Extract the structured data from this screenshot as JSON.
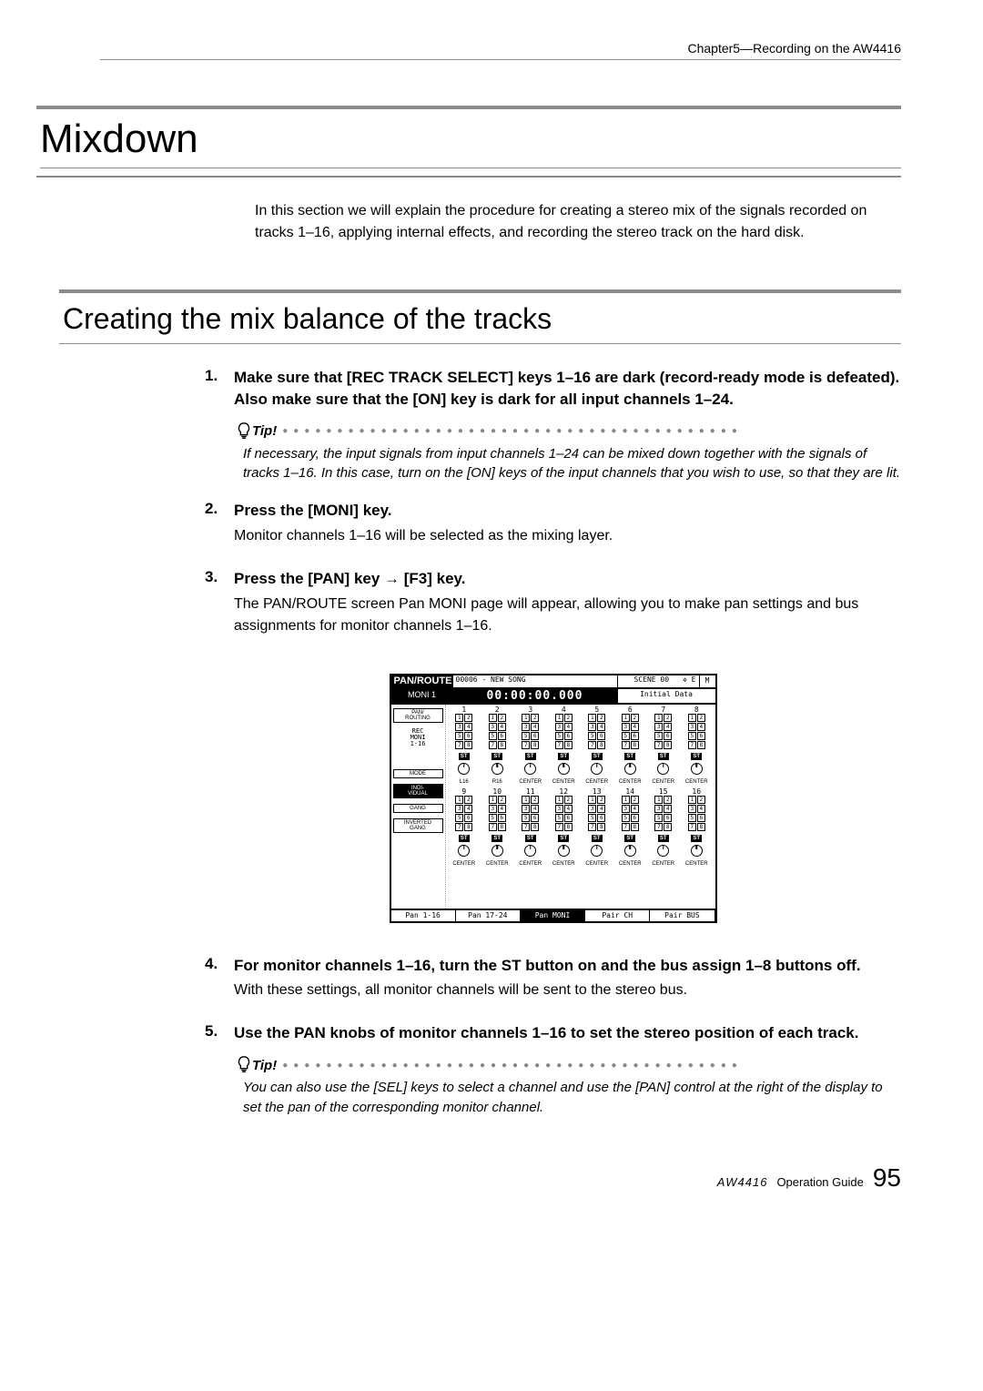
{
  "header": {
    "chapter": "Chapter5—Recording on the AW4416"
  },
  "main_title": "Mixdown",
  "intro": "In this section we will explain the procedure for creating a stereo mix of the signals recorded on tracks 1–16, applying internal effects, and recording the stereo track on the hard disk.",
  "section_title": "Creating the mix balance of the tracks",
  "steps": [
    {
      "num": "1.",
      "title": "Make sure that [REC TRACK SELECT] keys 1–16 are dark (record-ready mode is defeated). Also make sure that the [ON] key is dark for all input channels 1–24.",
      "desc": ""
    },
    {
      "num": "2.",
      "title": "Press the [MONI] key.",
      "desc": "Monitor channels 1–16 will be selected as the mixing layer."
    },
    {
      "num": "3.",
      "title": "Press the [PAN] key → [F3] key.",
      "desc": "The PAN/ROUTE screen Pan MONI page will appear, allowing you to make pan settings and bus assignments for monitor channels 1–16."
    },
    {
      "num": "4.",
      "title": "For monitor channels 1–16, turn the ST button on and the bus assign 1–8 buttons off.",
      "desc": "With these settings, all monitor channels will be sent to the stereo bus."
    },
    {
      "num": "5.",
      "title": "Use the PAN knobs of monitor channels 1–16 to set the stereo position of each track.",
      "desc": ""
    }
  ],
  "tips": [
    {
      "label": "Tip!",
      "text": "If necessary, the input signals from input channels 1–24 can be mixed down together with the signals of tracks 1–16. In this case, turn on the [ON] keys of the input channels that you wish to use, so that they are lit."
    },
    {
      "label": "Tip!",
      "text": "You can also use the [SEL] keys to select a channel and use the [PAN] control at the right of the display to set the pan of the corresponding monitor channel."
    }
  ],
  "lcd": {
    "screen_name": "PAN/ROUTE",
    "sub_label": "MONI 1",
    "session": "00006 - NEW SONG",
    "scene_label": "SCENE 00",
    "scene_icon": "✲ E",
    "m_icon": "M",
    "timecode": "00:00:00.000",
    "initial": "Initial Data",
    "side": {
      "pan_routing": "PAN/\nROUTING",
      "rec_moni": "REC\nMONI\n1-16",
      "mode": "MODE",
      "indi": "INDI-\nVIDUAL",
      "gang": "GANG",
      "inverted": "INVERTED\nGANG"
    },
    "cols_top": [
      "1",
      "–",
      "2",
      "3",
      "4",
      "5",
      "6",
      "7",
      "8"
    ],
    "cols_bot": [
      "9",
      "10",
      "11",
      "12",
      "13",
      "14",
      "15",
      "16"
    ],
    "center": "CENTER",
    "pan_first": [
      "L16",
      "R16",
      "CENTER",
      "CENTER",
      "CENTER",
      "CENTER",
      "CENTER",
      "CENTER"
    ],
    "st": "ST",
    "tabs": [
      "Pan 1-16",
      "Pan 17-24",
      "Pan MONI",
      "Pair CH",
      "Pair BUS"
    ]
  },
  "footer": {
    "logo": "AW4416",
    "guide": "Operation Guide",
    "page": "95"
  }
}
